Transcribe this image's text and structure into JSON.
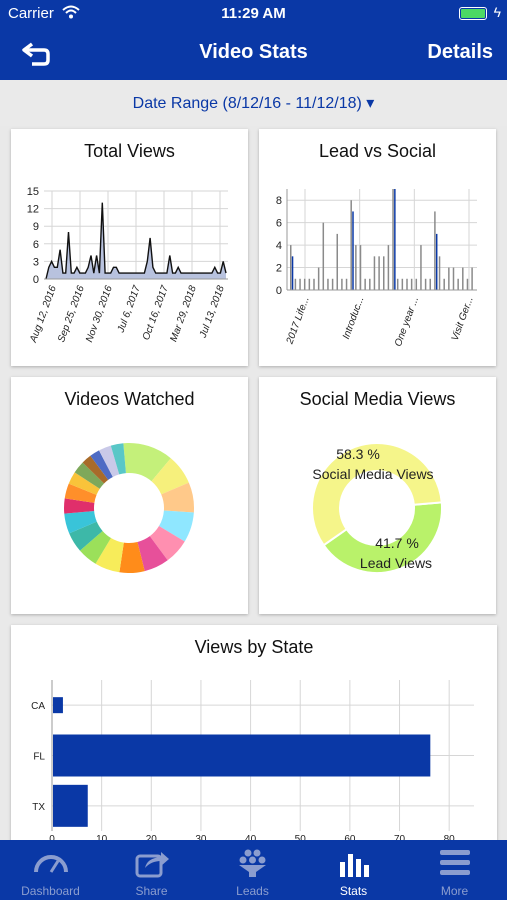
{
  "status_bar": {
    "carrier": "Carrier",
    "time": "11:29 AM"
  },
  "nav": {
    "title": "Video Stats",
    "details_label": "Details",
    "back_icon": "back-arrow-icon"
  },
  "date_range": {
    "label": "Date Range (8/12/16 - 11/12/18) ▾"
  },
  "colors": {
    "brand": "#0a38a6",
    "tab_inactive": "#8b9dcf",
    "social_yellow": "#f5f58a",
    "lead_green": "#b9f26a",
    "area_fill": "#b8c2de"
  },
  "cards": {
    "total_views": {
      "title": "Total Views"
    },
    "lead_vs_social": {
      "title": "Lead vs Social"
    },
    "videos_watched": {
      "title": "Videos Watched"
    },
    "social_media_views": {
      "title": "Social Media Views"
    },
    "views_by_state": {
      "title": "Views by State"
    }
  },
  "chart_data": [
    {
      "type": "area",
      "title": "Total Views",
      "ylim": [
        0,
        15
      ],
      "yticks": [
        "0",
        "3",
        "6",
        "9",
        "12",
        "15"
      ],
      "xticks": [
        "Aug 12, 2016",
        "Sep 25, 2016",
        "Nov 30, 2016",
        "Jul 6, 2017",
        "Oct 16, 2017",
        "Mar 29, 2018",
        "Jul 13, 2018"
      ],
      "grid": true,
      "values": [
        0,
        2,
        3,
        2,
        2,
        5,
        1,
        1,
        8,
        1,
        1,
        2,
        1,
        1,
        1,
        2,
        4,
        1,
        4,
        1,
        13,
        1,
        1,
        1,
        2,
        2,
        1,
        1,
        1,
        1,
        1,
        1,
        1,
        1,
        1,
        1,
        3,
        7,
        2,
        1,
        1,
        1,
        1,
        1,
        4,
        1,
        1,
        2,
        1,
        1,
        1,
        1,
        1,
        1,
        1,
        1,
        1,
        1,
        1,
        1,
        2,
        1,
        1,
        3,
        1
      ]
    },
    {
      "type": "bar",
      "title": "Lead vs Social",
      "ylim": [
        0,
        9
      ],
      "yticks": [
        "0",
        "2",
        "4",
        "6",
        "8"
      ],
      "xticks": [
        "2017 Life...",
        "Introduc...",
        "One year ...",
        "Visit Ger..."
      ],
      "grid": true,
      "series": [
        {
          "values": [
            4,
            1,
            1,
            1,
            1,
            1,
            2,
            6,
            1,
            1,
            5,
            1,
            1,
            8,
            4,
            4,
            1,
            1,
            3,
            3,
            3,
            4,
            9,
            1,
            1,
            1,
            1,
            1,
            4,
            1,
            1,
            7,
            3,
            1,
            2,
            2,
            1,
            2,
            1,
            2
          ]
        },
        {
          "values": [
            3,
            0,
            0,
            0,
            0,
            0,
            0,
            0,
            0,
            0,
            0,
            0,
            0,
            7,
            0,
            0,
            0,
            0,
            0,
            0,
            0,
            0,
            9,
            0,
            0,
            0,
            0,
            0,
            0,
            0,
            0,
            5,
            0,
            0,
            0,
            0,
            0,
            0,
            0,
            0
          ]
        }
      ]
    },
    {
      "type": "pie",
      "title": "Videos Watched",
      "slices": [
        {
          "value": 10,
          "color": "#c4f07a"
        },
        {
          "value": 6,
          "color": "#f6f07c"
        },
        {
          "value": 6,
          "color": "#ffc98a"
        },
        {
          "value": 6,
          "color": "#8fe7ff"
        },
        {
          "value": 5,
          "color": "#ff8fb0"
        },
        {
          "value": 5,
          "color": "#e7509a"
        },
        {
          "value": 5,
          "color": "#ff8c1a"
        },
        {
          "value": 5,
          "color": "#f7ec5a"
        },
        {
          "value": 4,
          "color": "#9be05a"
        },
        {
          "value": 4,
          "color": "#3db8a8"
        },
        {
          "value": 4,
          "color": "#39c4d9"
        },
        {
          "value": 3,
          "color": "#e02f6b"
        },
        {
          "value": 3,
          "color": "#ff8f2a"
        },
        {
          "value": 2.5,
          "color": "#f9c33a"
        },
        {
          "value": 2.5,
          "color": "#7ea85a"
        },
        {
          "value": 2,
          "color": "#a86b2a"
        },
        {
          "value": 2,
          "color": "#4e6bc4"
        },
        {
          "value": 2.5,
          "color": "#c9c9e8"
        },
        {
          "value": 2.5,
          "color": "#59c7c7"
        }
      ]
    },
    {
      "type": "pie",
      "title": "Social Media Views",
      "slices": [
        {
          "label": "Social Media Views",
          "percent": "58.3 %",
          "value": 58.3,
          "color": "#f5f58a"
        },
        {
          "label": "Lead Views",
          "percent": "41.7 %",
          "value": 41.7,
          "color": "#b9f26a"
        }
      ]
    },
    {
      "type": "bar",
      "title": "Views by State",
      "orientation": "horizontal",
      "categories": [
        "CA",
        "FL",
        "TX"
      ],
      "values": [
        2,
        76,
        7
      ],
      "xlim": [
        0,
        85
      ],
      "xticks": [
        "0",
        "10",
        "20",
        "30",
        "40",
        "50",
        "60",
        "70",
        "80"
      ],
      "grid": true,
      "color": "#0a38a6"
    }
  ],
  "tabs": [
    {
      "label": "Dashboard",
      "icon": "speedometer-icon",
      "active": false
    },
    {
      "label": "Share",
      "icon": "share-icon",
      "active": false
    },
    {
      "label": "Leads",
      "icon": "funnel-icon",
      "active": false
    },
    {
      "label": "Stats",
      "icon": "bar-chart-icon",
      "active": true
    },
    {
      "label": "More",
      "icon": "menu-icon",
      "active": false
    }
  ]
}
